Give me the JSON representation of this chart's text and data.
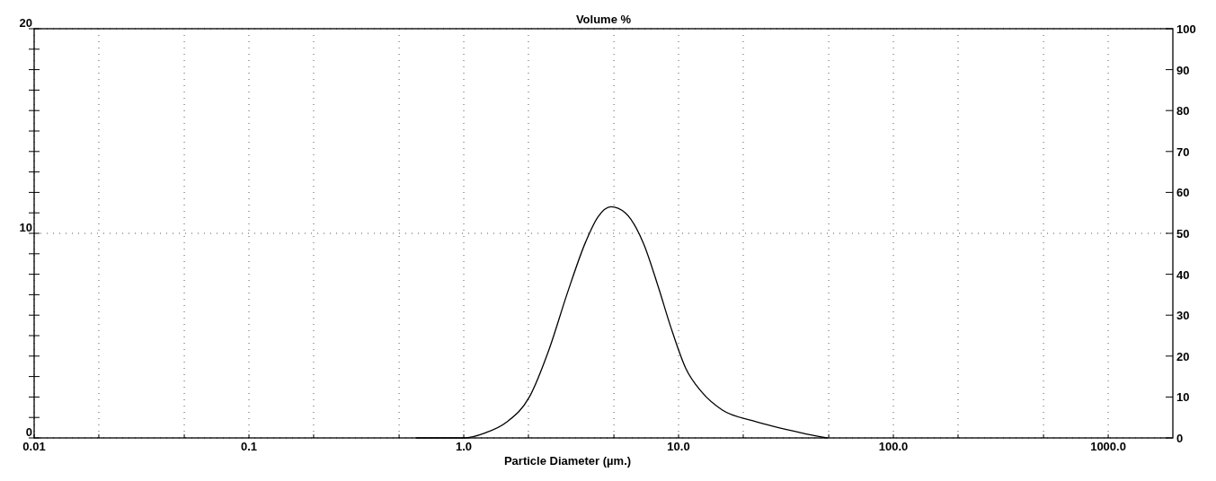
{
  "chart_data": {
    "type": "line",
    "title": "Volume %",
    "xlabel": "Particle Diameter (µm.)",
    "log": "x",
    "grid": true,
    "marker": "none",
    "line_style": "solid",
    "xlim": [
      0.01,
      2000
    ],
    "xticks": [
      {
        "value": 0.01,
        "label": "0.01"
      },
      {
        "value": 0.02,
        "label": null
      },
      {
        "value": 0.05,
        "label": null
      },
      {
        "value": 0.1,
        "label": "0.1"
      },
      {
        "value": 0.2,
        "label": null
      },
      {
        "value": 0.5,
        "label": null
      },
      {
        "value": 1,
        "label": "1.0"
      },
      {
        "value": 2,
        "label": null
      },
      {
        "value": 5,
        "label": null
      },
      {
        "value": 10,
        "label": "10.0"
      },
      {
        "value": 20,
        "label": null
      },
      {
        "value": 50,
        "label": null
      },
      {
        "value": 100,
        "label": "100.0"
      },
      {
        "value": 200,
        "label": null
      },
      {
        "value": 500,
        "label": null
      },
      {
        "value": 1000,
        "label": "1000.0"
      }
    ],
    "ylim": [
      0,
      20
    ],
    "yticks": [
      0,
      {
        "value": 1,
        "label": null
      },
      {
        "value": 2,
        "label": null
      },
      {
        "value": 3,
        "label": null
      },
      {
        "value": 4,
        "label": null
      },
      {
        "value": 5,
        "label": null
      },
      {
        "value": 6,
        "label": null
      },
      {
        "value": 7,
        "label": null
      },
      {
        "value": 8,
        "label": null
      },
      {
        "value": 9,
        "label": null
      },
      10,
      {
        "value": 11,
        "label": null
      },
      {
        "value": 12,
        "label": null
      },
      {
        "value": 13,
        "label": null
      },
      {
        "value": 14,
        "label": null
      },
      {
        "value": 15,
        "label": null
      },
      {
        "value": 16,
        "label": null
      },
      {
        "value": 17,
        "label": null
      },
      {
        "value": 18,
        "label": null
      },
      {
        "value": 19,
        "label": null
      },
      20
    ],
    "y2lim": [
      0,
      100
    ],
    "y2ticks": [
      0,
      10,
      20,
      30,
      40,
      50,
      60,
      70,
      80,
      90,
      100
    ],
    "series": [
      {
        "color": "#000000",
        "x": [
          0.6,
          0.8,
          1.0,
          1.26,
          1.58,
          2.02,
          2.49,
          3.04,
          3.7,
          4.21,
          4.85,
          5.65,
          6.87,
          8.09,
          9.21,
          10.8,
          12.8,
          16.0,
          22.2,
          37.3,
          49
        ],
        "values": [
          0,
          0,
          0,
          0.25,
          0.77,
          2.0,
          4.3,
          7.1,
          9.6,
          10.8,
          11.3,
          11.0,
          9.5,
          7.3,
          5.4,
          3.4,
          2.25,
          1.36,
          0.84,
          0.25,
          0
        ]
      }
    ]
  }
}
